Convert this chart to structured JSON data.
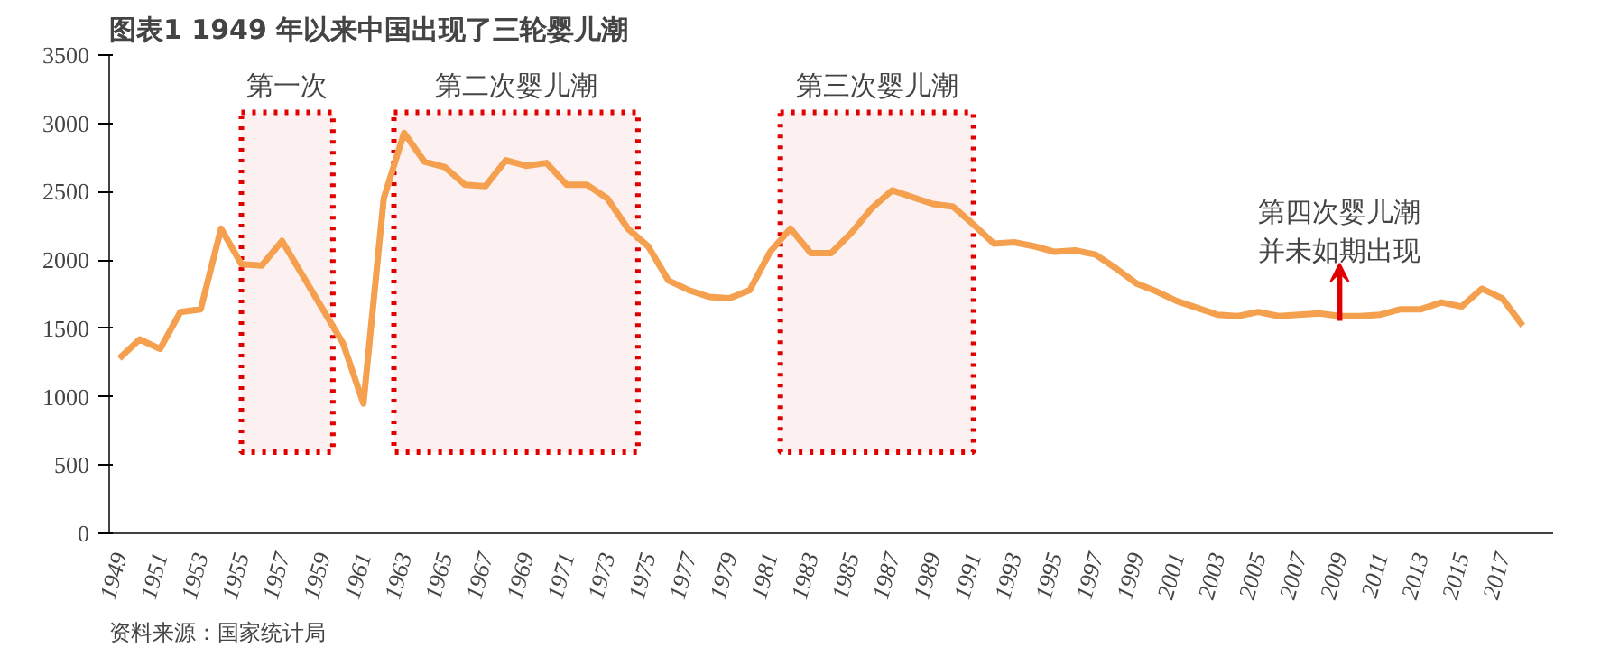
{
  "chart_data": {
    "type": "line",
    "title": "图表1 1949 年以来中国出现了三轮婴儿潮",
    "x": [
      1949,
      1950,
      1951,
      1952,
      1953,
      1954,
      1955,
      1956,
      1957,
      1958,
      1959,
      1960,
      1961,
      1962,
      1963,
      1964,
      1965,
      1966,
      1967,
      1968,
      1969,
      1970,
      1971,
      1972,
      1973,
      1974,
      1975,
      1976,
      1977,
      1978,
      1979,
      1980,
      1981,
      1982,
      1983,
      1984,
      1985,
      1986,
      1987,
      1988,
      1989,
      1990,
      1991,
      1992,
      1993,
      1994,
      1995,
      1996,
      1997,
      1998,
      1999,
      2000,
      2001,
      2002,
      2003,
      2004,
      2005,
      2006,
      2007,
      2008,
      2009,
      2010,
      2011,
      2012,
      2013,
      2014,
      2015,
      2016,
      2017,
      2018
    ],
    "series": [
      {
        "color": "#f4a04f",
        "values": [
          1280,
          1420,
          1350,
          1620,
          1640,
          2230,
          1970,
          1960,
          2140,
          1890,
          1640,
          1390,
          950,
          2450,
          2930,
          2720,
          2680,
          2550,
          2540,
          2730,
          2690,
          2710,
          2550,
          2550,
          2450,
          2230,
          2100,
          1850,
          1780,
          1730,
          1720,
          1780,
          2060,
          2230,
          2050,
          2050,
          2200,
          2380,
          2510,
          2460,
          2410,
          2390,
          2260,
          2120,
          2130,
          2100,
          2060,
          2070,
          2040,
          1940,
          1830,
          1770,
          1700,
          1650,
          1600,
          1590,
          1620,
          1590,
          1600,
          1610,
          1590,
          1590,
          1600,
          1640,
          1640,
          1690,
          1660,
          1790,
          1720,
          1520
        ]
      }
    ],
    "xlim": [
      1948.5,
      2019.5
    ],
    "xticks": [
      1949,
      1951,
      1953,
      1955,
      1957,
      1959,
      1961,
      1963,
      1965,
      1967,
      1969,
      1971,
      1973,
      1975,
      1977,
      1979,
      1981,
      1983,
      1985,
      1987,
      1989,
      1991,
      1993,
      1995,
      1997,
      1999,
      2001,
      2003,
      2005,
      2007,
      2009,
      2011,
      2013,
      2015,
      2017
    ],
    "ylim": [
      0,
      3500
    ],
    "yticks": [
      0,
      500,
      1000,
      1500,
      2000,
      2500,
      3000,
      3500
    ],
    "grid": false,
    "marker": "none",
    "line_style": "solid",
    "bands": [
      {
        "axis": "x",
        "from": 1955,
        "to": 1959.5,
        "label": "第一次",
        "color": "#e00000"
      },
      {
        "axis": "x",
        "from": 1962.5,
        "to": 1974.5,
        "label": "第二次婴儿潮",
        "color": "#e00000"
      },
      {
        "axis": "x",
        "from": 1981.5,
        "to": 1991,
        "label": "第三次婴儿潮",
        "color": "#e00000"
      }
    ],
    "annotations": [
      {
        "text": "第四次婴儿潮并未如期出现",
        "x": 2009,
        "y": 1590
      },
      "资料来源：国家统计局"
    ]
  }
}
